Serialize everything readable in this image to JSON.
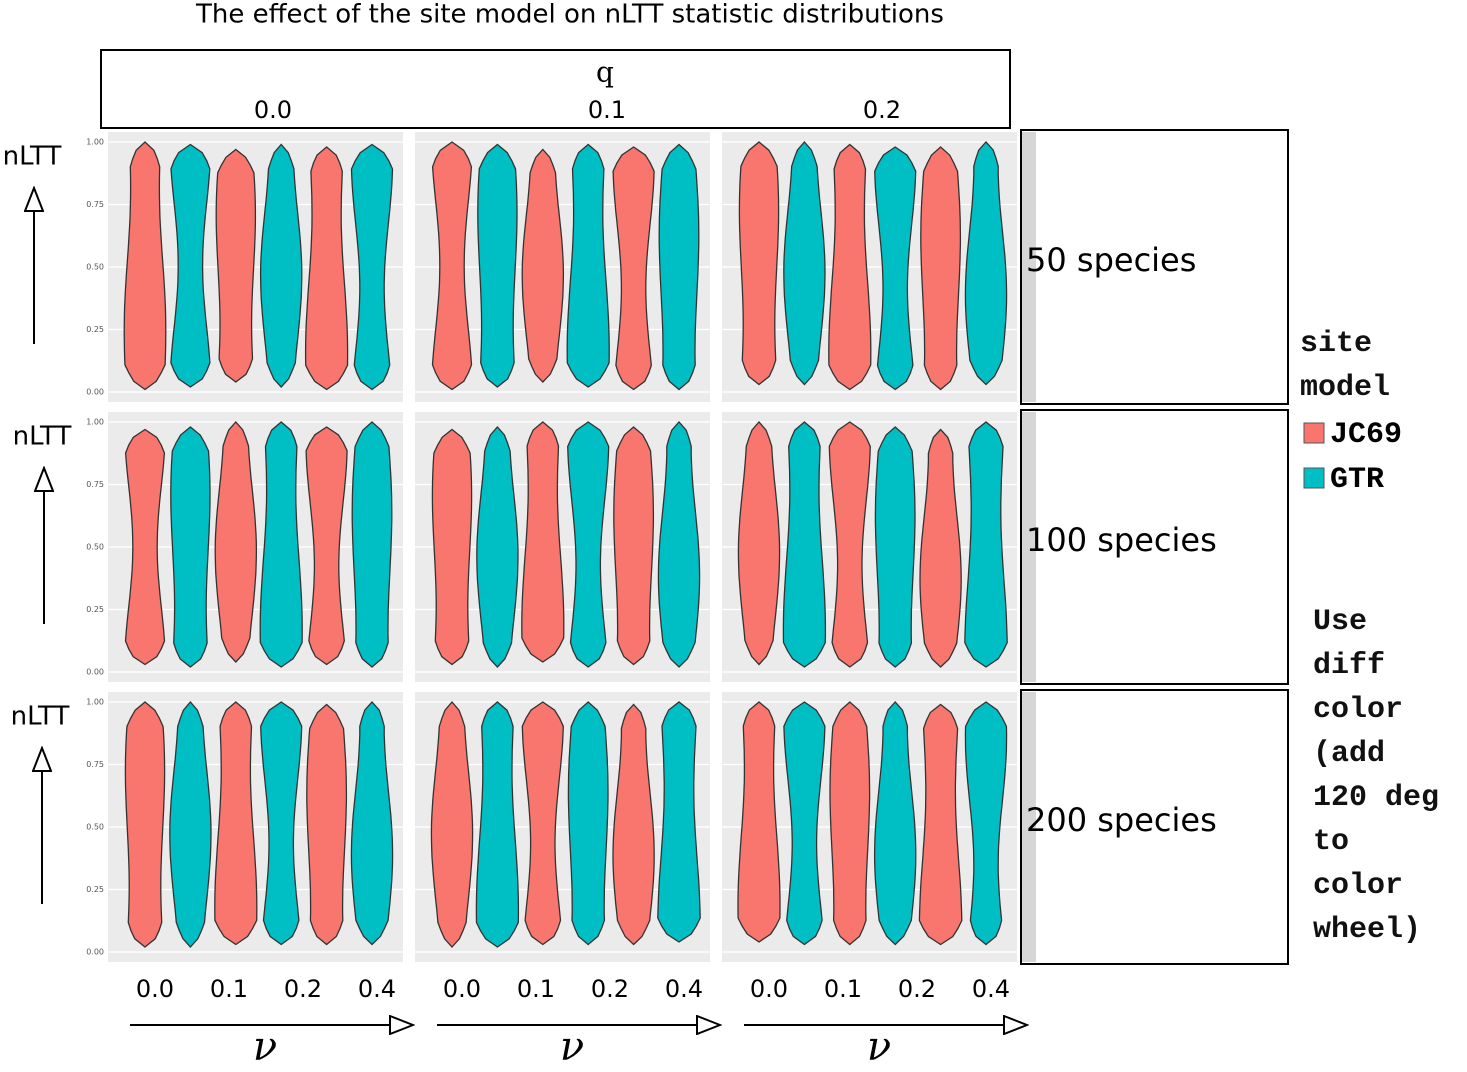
{
  "chart_data": {
    "type": "violin",
    "title": "The effect of the  site model  on nLTT statistic distributions",
    "column_facet_label": "q",
    "column_facets": [
      "0.0",
      "0.1",
      "0.2"
    ],
    "row_facets": [
      "50 species",
      "100 species",
      "200 species"
    ],
    "y_label": "nLTT",
    "x_label": "ν",
    "x_tick_labels": [
      "0.0",
      "0.1",
      "0.2",
      "0.4"
    ],
    "ylim": [
      -0.04,
      1.04
    ],
    "yticks": [
      {
        "value": 0,
        "label": "0.00"
      },
      {
        "value": 0.25,
        "label": "0.25"
      },
      {
        "value": 0.5,
        "label": "0.50"
      },
      {
        "value": 0.75,
        "label": "0.75"
      },
      {
        "value": 1,
        "label": "1.00"
      }
    ],
    "grid": true,
    "legend_title": "site model",
    "series": [
      {
        "name": "JC69",
        "color": "#f8766d"
      },
      {
        "name": "GTR",
        "color": "#00bfc4"
      }
    ],
    "panels": [
      [
        {
          "min": [
            0.01,
            0.02,
            0.04,
            0.02,
            0.01,
            0.01
          ],
          "max": [
            1.0,
            0.99,
            0.97,
            0.99,
            0.98,
            0.99
          ]
        },
        {
          "min": [
            0.01,
            0.02,
            0.04,
            0.02,
            0.01,
            0.01
          ],
          "max": [
            1.0,
            0.99,
            0.97,
            0.99,
            0.98,
            0.99
          ]
        },
        {
          "min": [
            0.03,
            0.03,
            0.01,
            0.01,
            0.01,
            0.03
          ],
          "max": [
            1.0,
            1.0,
            0.99,
            0.98,
            0.98,
            1.0
          ]
        }
      ],
      [
        {
          "min": [
            0.03,
            0.02,
            0.04,
            0.02,
            0.03,
            0.02
          ],
          "max": [
            0.97,
            0.98,
            1.0,
            1.0,
            0.98,
            1.0
          ]
        },
        {
          "min": [
            0.03,
            0.02,
            0.04,
            0.02,
            0.03,
            0.02
          ],
          "max": [
            0.97,
            0.98,
            1.0,
            1.0,
            0.98,
            1.0
          ]
        },
        {
          "min": [
            0.03,
            0.02,
            0.02,
            0.02,
            0.02,
            0.02
          ],
          "max": [
            1.0,
            1.0,
            1.0,
            0.98,
            0.97,
            1.0
          ]
        }
      ],
      [
        {
          "min": [
            0.02,
            0.02,
            0.03,
            0.03,
            0.03,
            0.03
          ],
          "max": [
            1.0,
            1.0,
            1.0,
            1.0,
            0.99,
            1.0
          ]
        },
        {
          "min": [
            0.02,
            0.02,
            0.03,
            0.03,
            0.03,
            0.04
          ],
          "max": [
            1.0,
            1.0,
            1.0,
            1.0,
            0.99,
            1.0
          ]
        },
        {
          "min": [
            0.04,
            0.03,
            0.03,
            0.03,
            0.03,
            0.03
          ],
          "max": [
            1.0,
            1.0,
            1.0,
            1.0,
            0.99,
            1.0
          ]
        }
      ]
    ],
    "annotation": "Use diff color (add 120 deg to color wheel)"
  }
}
